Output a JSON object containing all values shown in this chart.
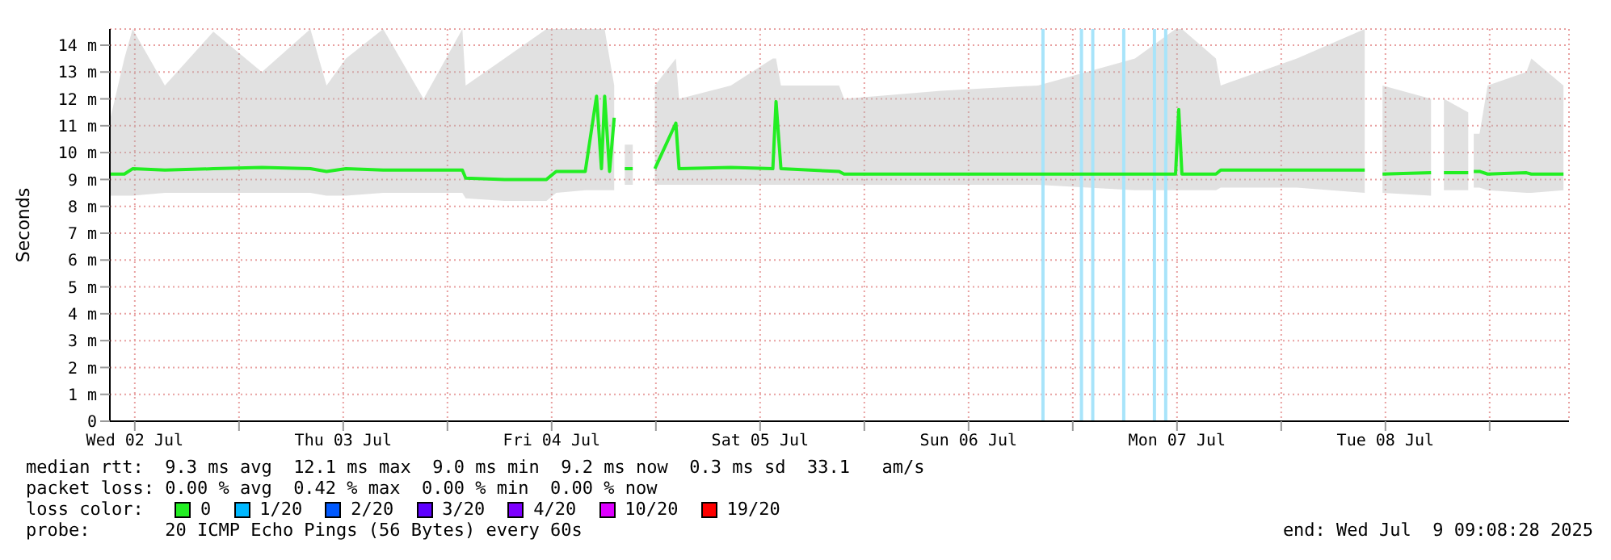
{
  "chart_data": {
    "type": "line",
    "ylabel": "Seconds",
    "legend_title": "loss color:",
    "x": [
      "2025-07-02T09:08",
      "2025-07-02T10:48",
      "2025-07-02T11:45",
      "2025-07-02T15:28",
      "2025-07-02T21:03",
      "2025-07-03T02:38",
      "2025-07-03T08:13",
      "2025-07-03T10:05",
      "2025-07-03T12:19",
      "2025-07-03T16:36",
      "2025-07-03T21:15",
      "2025-07-04T01:43",
      "2025-07-04T02:06",
      "2025-07-04T06:34",
      "2025-07-04T11:24",
      "2025-07-04T12:31",
      "2025-07-04T15:52",
      "2025-07-04T17:10",
      "2025-07-04T17:44",
      "2025-07-04T18:06",
      "2025-07-04T18:40",
      "2025-07-04T19:12",
      "2025-07-04T19:50",
      "2025-07-04T20:25",
      "2025-07-04T21:20",
      "2025-07-04T22:30",
      "2025-07-04T23:53",
      "2025-07-05T02:18",
      "2025-07-05T02:40",
      "2025-07-05T08:38",
      "2025-07-05T13:28",
      "2025-07-05T13:50",
      "2025-07-05T14:24",
      "2025-07-05T21:06",
      "2025-07-05T21:40",
      "2025-07-06T08:50",
      "2025-07-06T20:00",
      "2025-07-07T07:10",
      "2025-07-07T11:50",
      "2025-07-07T12:12",
      "2025-07-07T12:34",
      "2025-07-07T16:29",
      "2025-07-07T17:02",
      "2025-07-08T01:48",
      "2025-07-08T09:37",
      "2025-07-08T10:33",
      "2025-07-08T11:40",
      "2025-07-08T17:15",
      "2025-07-08T18:00",
      "2025-07-08T18:44",
      "2025-07-08T21:32",
      "2025-07-08T21:50",
      "2025-07-08T22:10",
      "2025-07-08T22:50",
      "2025-07-08T23:46",
      "2025-07-09T04:14",
      "2025-07-09T04:48",
      "2025-07-09T08:30"
    ],
    "series": [
      {
        "name": "0",
        "color": "#22ee22",
        "values": [
          9.2,
          9.2,
          9.4,
          9.35,
          9.4,
          9.45,
          9.4,
          9.3,
          9.4,
          9.35,
          9.35,
          9.35,
          9.05,
          9.0,
          9.0,
          9.3,
          9.3,
          12.1,
          9.4,
          12.1,
          9.3,
          11.3,
          null,
          9.4,
          9.4,
          null,
          9.4,
          11.1,
          9.4,
          9.45,
          9.4,
          11.9,
          9.4,
          9.3,
          9.2,
          9.2,
          9.2,
          9.2,
          9.2,
          11.6,
          9.2,
          9.2,
          9.35,
          9.35,
          9.35,
          null,
          9.2,
          9.25,
          null,
          9.25,
          9.25,
          null,
          9.3,
          9.3,
          9.2,
          9.25,
          9.2,
          9.2
        ],
        "lower": [
          8.4,
          8.4,
          8.4,
          8.5,
          8.5,
          8.5,
          8.5,
          8.4,
          8.4,
          8.5,
          8.5,
          8.5,
          8.3,
          8.2,
          8.2,
          8.5,
          8.6,
          8.6,
          8.6,
          8.6,
          8.6,
          8.6,
          null,
          8.8,
          8.8,
          null,
          8.8,
          8.8,
          8.8,
          8.8,
          8.8,
          8.8,
          8.8,
          8.8,
          8.8,
          8.8,
          8.8,
          8.6,
          8.6,
          8.6,
          8.6,
          8.6,
          8.7,
          8.7,
          8.5,
          null,
          8.5,
          8.4,
          null,
          8.6,
          8.6,
          null,
          8.7,
          8.7,
          8.6,
          8.5,
          8.5,
          8.6
        ],
        "upper": [
          11.2,
          13.5,
          14.6,
          12.5,
          14.5,
          13,
          14.6,
          12.5,
          13.5,
          14.6,
          12,
          14.6,
          12.5,
          13.5,
          14.6,
          14.6,
          14.6,
          14.6,
          14.6,
          14.6,
          13.5,
          12.5,
          null,
          10.3,
          10.3,
          null,
          12.5,
          13.5,
          12,
          12.5,
          13.5,
          13.5,
          12.5,
          12.5,
          12,
          12.3,
          12.5,
          13.5,
          14.6,
          14.6,
          14.6,
          13.5,
          12.5,
          13.5,
          14.6,
          null,
          12.5,
          12,
          null,
          12,
          11.5,
          null,
          10.7,
          10.7,
          12.5,
          13,
          13.5,
          12.5
        ]
      },
      {
        "name": "1/20",
        "color": "#00b8ff",
        "values": [
          null,
          null,
          null,
          null,
          null,
          null,
          null,
          null,
          null,
          null,
          null,
          null,
          null,
          null,
          null,
          null,
          null,
          null,
          null,
          null,
          null,
          null,
          null,
          null,
          null,
          null,
          null,
          null,
          null,
          null,
          null,
          null,
          null,
          null,
          null,
          null,
          null,
          null,
          null,
          null,
          null,
          null,
          null,
          null,
          null,
          null,
          null,
          null,
          null,
          null,
          null,
          null,
          null,
          null,
          null,
          null,
          null,
          null
        ]
      },
      {
        "name": "2/20",
        "color": "#0059ff",
        "values": [
          null,
          null,
          null,
          null,
          null,
          null,
          null,
          null,
          null,
          null,
          null,
          null,
          null,
          null,
          null,
          null,
          null,
          null,
          null,
          null,
          null,
          null,
          null,
          null,
          null,
          null,
          null,
          null,
          null,
          null,
          null,
          null,
          null,
          null,
          null,
          null,
          null,
          null,
          null,
          null,
          null,
          null,
          null,
          null,
          null,
          null,
          null,
          null,
          null,
          null,
          null,
          null,
          null,
          null,
          null,
          null,
          null,
          null
        ]
      },
      {
        "name": "3/20",
        "color": "#5e00ff",
        "values": [
          null,
          null,
          null,
          null,
          null,
          null,
          null,
          null,
          null,
          null,
          null,
          null,
          null,
          null,
          null,
          null,
          null,
          null,
          null,
          null,
          null,
          null,
          null,
          null,
          null,
          null,
          null,
          null,
          null,
          null,
          null,
          null,
          null,
          null,
          null,
          null,
          null,
          null,
          null,
          null,
          null,
          null,
          null,
          null,
          null,
          null,
          null,
          null,
          null,
          null,
          null,
          null,
          null,
          null,
          null,
          null,
          null,
          null
        ]
      },
      {
        "name": "4/20",
        "color": "#7e00ff",
        "values": [
          null,
          null,
          null,
          null,
          null,
          null,
          null,
          null,
          null,
          null,
          null,
          null,
          null,
          null,
          null,
          null,
          null,
          null,
          null,
          null,
          null,
          null,
          null,
          null,
          null,
          null,
          null,
          null,
          null,
          null,
          null,
          null,
          null,
          null,
          null,
          null,
          null,
          null,
          null,
          null,
          null,
          null,
          null,
          null,
          null,
          null,
          null,
          null,
          null,
          null,
          null,
          null,
          null,
          null,
          null,
          null,
          null,
          null
        ]
      },
      {
        "name": "10/20",
        "color": "#dd00ff",
        "values": [
          null,
          null,
          null,
          null,
          null,
          null,
          null,
          null,
          null,
          null,
          null,
          null,
          null,
          null,
          null,
          null,
          null,
          null,
          null,
          null,
          null,
          null,
          null,
          null,
          null,
          null,
          null,
          null,
          null,
          null,
          null,
          null,
          null,
          null,
          null,
          null,
          null,
          null,
          null,
          null,
          null,
          null,
          null,
          null,
          null,
          null,
          null,
          null,
          null,
          null,
          null,
          null,
          null,
          null,
          null,
          null,
          null,
          null
        ]
      },
      {
        "name": "19/20",
        "color": "#ff0000",
        "values": [
          null,
          null,
          null,
          null,
          null,
          null,
          null,
          null,
          null,
          null,
          null,
          null,
          null,
          null,
          null,
          null,
          null,
          null,
          null,
          null,
          null,
          null,
          null,
          null,
          null,
          null,
          null,
          null,
          null,
          null,
          null,
          null,
          null,
          null,
          null,
          null,
          null,
          null,
          null,
          null,
          null,
          null,
          null,
          null,
          null,
          null,
          null,
          null,
          null,
          null,
          null,
          null,
          null,
          null,
          null,
          null,
          null,
          null
        ]
      }
    ],
    "ref_lines": [
      {
        "axis": "x",
        "value": "2025-07-06T20:34",
        "color": "#a8e4fa"
      },
      {
        "axis": "x",
        "value": "2025-07-07T01:00",
        "color": "#a8e4fa"
      },
      {
        "axis": "x",
        "value": "2025-07-07T02:18",
        "color": "#a8e4fa"
      },
      {
        "axis": "x",
        "value": "2025-07-07T05:52",
        "color": "#a8e4fa"
      },
      {
        "axis": "x",
        "value": "2025-07-07T09:24",
        "color": "#a8e4fa"
      },
      {
        "axis": "x",
        "value": "2025-07-07T10:42",
        "color": "#a8e4fa"
      }
    ],
    "xlim": [
      "2025-07-02T09:08",
      "2025-07-09T09:08"
    ],
    "xticks": [
      {
        "value": "2025-07-02T12:00",
        "label": "Wed 02 Jul"
      },
      {
        "value": "2025-07-03T00:00",
        "label": null
      },
      {
        "value": "2025-07-03T12:00",
        "label": "Thu 03 Jul"
      },
      {
        "value": "2025-07-04T00:00",
        "label": null
      },
      {
        "value": "2025-07-04T12:00",
        "label": "Fri 04 Jul"
      },
      {
        "value": "2025-07-05T00:00",
        "label": null
      },
      {
        "value": "2025-07-05T12:00",
        "label": "Sat 05 Jul"
      },
      {
        "value": "2025-07-06T00:00",
        "label": null
      },
      {
        "value": "2025-07-06T12:00",
        "label": "Sun 06 Jul"
      },
      {
        "value": "2025-07-07T00:00",
        "label": null
      },
      {
        "value": "2025-07-07T12:00",
        "label": "Mon 07 Jul"
      },
      {
        "value": "2025-07-08T00:00",
        "label": null
      },
      {
        "value": "2025-07-08T12:00",
        "label": "Tue 08 Jul"
      },
      {
        "value": "2025-07-09T00:00",
        "label": null
      }
    ],
    "ylim": [
      0,
      14.6
    ],
    "yticks": [
      0,
      {
        "value": 1,
        "label": "1 m"
      },
      {
        "value": 2,
        "label": "2 m"
      },
      {
        "value": 3,
        "label": "3 m"
      },
      {
        "value": 4,
        "label": "4 m"
      },
      {
        "value": 5,
        "label": "5 m"
      },
      {
        "value": 6,
        "label": "6 m"
      },
      {
        "value": 7,
        "label": "7 m"
      },
      {
        "value": 8,
        "label": "8 m"
      },
      {
        "value": 9,
        "label": "9 m"
      },
      {
        "value": 10,
        "label": "10 m"
      },
      {
        "value": 11,
        "label": "11 m"
      },
      {
        "value": 12,
        "label": "12 m"
      },
      {
        "value": 13,
        "label": "13 m"
      },
      {
        "value": 14,
        "label": "14 m"
      }
    ],
    "grid": true,
    "legend": "bottom",
    "marker": "none",
    "line_style": "solid",
    "annotations": [
      "median rtt:  9.3 ms avg  12.1 ms max  9.0 ms min  9.2 ms now  0.3 ms sd  33.1   am/s",
      "packet loss: 0.00 % avg  0.42 % max  0.00 % min  0.00 % now",
      "probe:       20 ICMP Echo Pings (56 Bytes) every 60s",
      "end: Wed Jul  9 09:08:28 2025"
    ]
  }
}
